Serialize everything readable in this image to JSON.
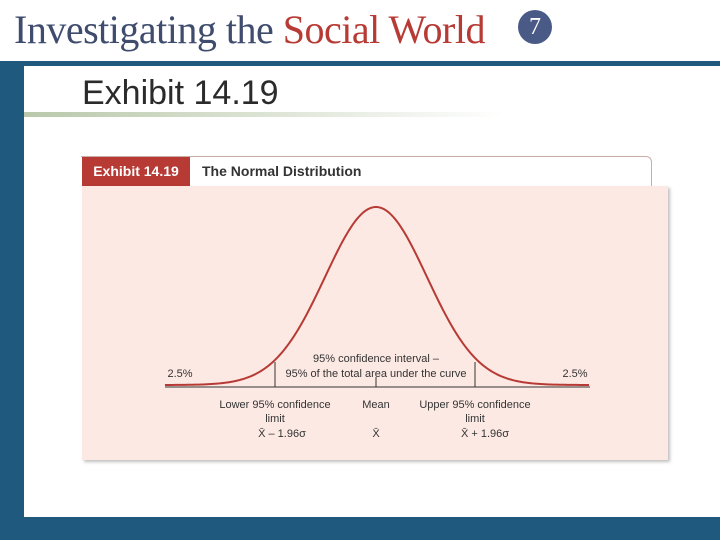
{
  "header": {
    "title_part1": "Investigating the ",
    "title_part2": "Social World",
    "edition": "7"
  },
  "slide": {
    "title": "Exhibit 14.19"
  },
  "exhibit": {
    "tab_label": "Exhibit 14.19",
    "caption": "The Normal Distribution"
  },
  "diagram": {
    "left_tail_pct": "2.5%",
    "right_tail_pct": "2.5%",
    "interval_line1": "95% confidence interval –",
    "interval_line2": "95% of the total area under the curve",
    "lower_label_line1": "Lower 95% confidence",
    "lower_label_line2": "limit",
    "lower_formula": "X̄ – 1.96σ",
    "mean_label": "Mean",
    "mean_symbol": "X̄",
    "upper_label_line1": "Upper 95% confidence",
    "upper_label_line2": "limit",
    "upper_formula": "X̄ + 1.96σ",
    "curve_color": "#b73a34"
  }
}
